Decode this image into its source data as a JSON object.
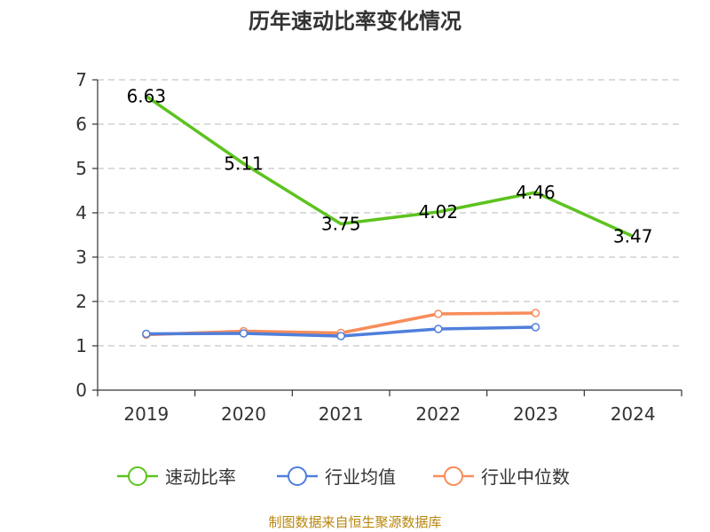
{
  "title": "历年速动比率变化情况",
  "source": "制图数据来自恒生聚源数据库",
  "chart_data": {
    "type": "line",
    "title": "历年速动比率变化情况",
    "xlabel": "",
    "ylabel": "",
    "categories": [
      "2019",
      "2020",
      "2021",
      "2022",
      "2023",
      "2024"
    ],
    "ylim": [
      0,
      7
    ],
    "yticks": [
      0,
      1,
      2,
      3,
      4,
      5,
      6,
      7
    ],
    "grid": true,
    "legend_position": "bottom",
    "series": [
      {
        "name": "速动比率",
        "color": "#5cc31f",
        "values": [
          6.63,
          5.11,
          3.75,
          4.02,
          4.46,
          3.47
        ],
        "labels": [
          "6.63",
          "5.11",
          "3.75",
          "4.02",
          "4.46",
          "3.47"
        ],
        "show_labels": true,
        "markers": false
      },
      {
        "name": "行业均值",
        "color": "#4f7fdb",
        "values": [
          1.27,
          1.28,
          1.22,
          1.38,
          1.42,
          null
        ],
        "show_labels": false,
        "markers": true
      },
      {
        "name": "行业中位数",
        "color": "#f78c5a",
        "values": [
          1.25,
          1.33,
          1.29,
          1.72,
          1.74,
          null
        ],
        "show_labels": false,
        "markers": true
      }
    ]
  }
}
